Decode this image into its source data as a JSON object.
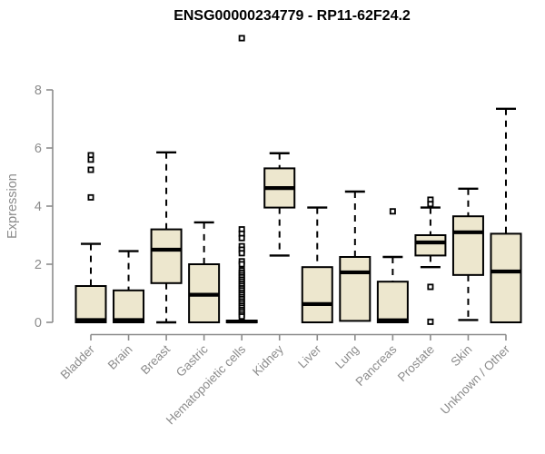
{
  "figure": {
    "title": "ENSG00000234779 - RP11-62F24.2",
    "y_axis_label": "Expression"
  },
  "colors": {
    "box_fill": "#EDE7CE",
    "box_stroke": "#000000",
    "median": "#000000",
    "whisker": "#000000",
    "outlier": "#000000",
    "axis": "#8C8C8C",
    "tick_label": "#8C8C8C",
    "title_text": "#000000",
    "background": "#FFFFFF"
  },
  "chart_data": {
    "type": "boxplot",
    "title": "ENSG00000234779 - RP11-62F24.2",
    "xlabel": "",
    "ylabel": "Expression",
    "ylim": [
      0,
      8
    ],
    "yticks": [
      0,
      2,
      4,
      6,
      8
    ],
    "grid": false,
    "legend": false,
    "categories": [
      "Bladder",
      "Brain",
      "Breast",
      "Gastric",
      "Hematopoietic cells",
      "Kidney",
      "Liver",
      "Lung",
      "Pancreas",
      "Prostate",
      "Skin",
      "Unknown / Other"
    ],
    "boxes": [
      {
        "category": "Bladder",
        "whisker_low": 0,
        "q1": 0,
        "median": 0.08,
        "q3": 1.25,
        "whisker_high": 2.7,
        "outliers": [
          5.75,
          5.6,
          5.25,
          4.3
        ]
      },
      {
        "category": "Brain",
        "whisker_low": 0,
        "q1": 0,
        "median": 0.08,
        "q3": 1.1,
        "whisker_high": 2.45,
        "outliers": []
      },
      {
        "category": "Breast",
        "whisker_low": 0,
        "q1": 1.35,
        "median": 2.5,
        "q3": 3.2,
        "whisker_high": 5.85,
        "outliers": []
      },
      {
        "category": "Gastric",
        "whisker_low": 0,
        "q1": 0,
        "median": 0.95,
        "q3": 2.0,
        "whisker_high": 3.44,
        "outliers": []
      },
      {
        "category": "Hematopoietic cells",
        "whisker_low": 0,
        "q1": 0,
        "median": 0.03,
        "q3": 0.06,
        "whisker_high": 0.08,
        "outliers": [
          9.78,
          3.2,
          3.05,
          2.9,
          2.62,
          2.5,
          2.38,
          2.1,
          2.0,
          1.78,
          1.7,
          1.62,
          1.55,
          1.47,
          1.4,
          1.32,
          1.25,
          1.17,
          1.1,
          1.02,
          0.95,
          0.87,
          0.8,
          0.72,
          0.65,
          0.57,
          0.5,
          0.42,
          0.35,
          0.27,
          0.2
        ]
      },
      {
        "category": "Kidney",
        "whisker_low": 2.3,
        "q1": 3.95,
        "median": 4.62,
        "q3": 5.3,
        "whisker_high": 5.82,
        "outliers": []
      },
      {
        "category": "Liver",
        "whisker_low": 0,
        "q1": 0,
        "median": 0.63,
        "q3": 1.9,
        "whisker_high": 3.95,
        "outliers": []
      },
      {
        "category": "Lung",
        "whisker_low": 0,
        "q1": 0.05,
        "median": 1.72,
        "q3": 2.25,
        "whisker_high": 4.5,
        "outliers": []
      },
      {
        "category": "Pancreas",
        "whisker_low": 0,
        "q1": 0,
        "median": 0.07,
        "q3": 1.4,
        "whisker_high": 2.25,
        "outliers": [
          3.82
        ]
      },
      {
        "category": "Prostate",
        "whisker_low": 1.9,
        "q1": 2.3,
        "median": 2.75,
        "q3": 3.0,
        "whisker_high": 3.95,
        "outliers": [
          4.22,
          4.07,
          1.22,
          0.02
        ]
      },
      {
        "category": "Skin",
        "whisker_low": 0.08,
        "q1": 1.63,
        "median": 3.1,
        "q3": 3.65,
        "whisker_high": 4.6,
        "outliers": []
      },
      {
        "category": "Unknown / Other",
        "whisker_low": 0,
        "q1": 0,
        "median": 1.75,
        "q3": 3.05,
        "whisker_high": 7.35,
        "outliers": []
      }
    ]
  }
}
